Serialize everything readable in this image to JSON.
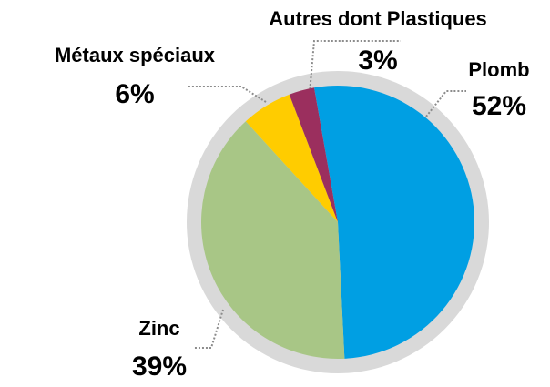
{
  "chart_data": {
    "type": "pie",
    "categories": [
      "Plomb",
      "Zinc",
      "Métaux spéciaux",
      "Autres dont Plastiques"
    ],
    "values": [
      52,
      39,
      6,
      3
    ],
    "value_labels": [
      "52%",
      "39%",
      "6%",
      "3%"
    ],
    "colors": [
      "#009fe3",
      "#a8c686",
      "#ffcc00",
      "#9b2f5e"
    ]
  }
}
